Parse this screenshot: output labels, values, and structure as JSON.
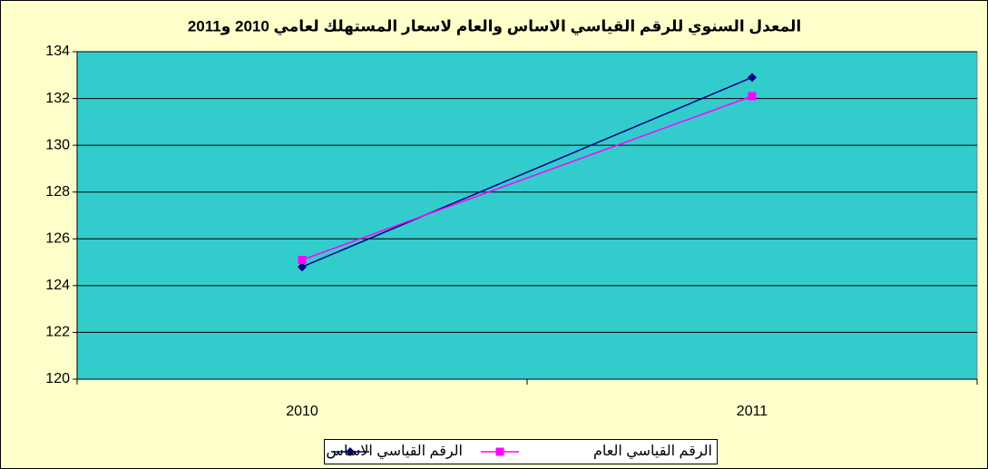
{
  "chart_data": {
    "type": "line",
    "title": "المعدل السنوي للرقم القياسي الاساس والعام لاسعار المستهلك لعامي 2010 و2011",
    "categories": [
      "2010",
      "2011"
    ],
    "series": [
      {
        "name": "الرقم القياسي الاساس",
        "color": "#000080",
        "marker": "diamond",
        "values": [
          124.8,
          132.9
        ]
      },
      {
        "name": "الرقم القياسي العام",
        "color": "#ff00ff",
        "marker": "square",
        "values": [
          125.1,
          132.1
        ]
      }
    ],
    "ylim": [
      120,
      134
    ],
    "yticks": [
      120,
      122,
      124,
      126,
      128,
      130,
      132,
      134
    ],
    "grid": true,
    "legend": "bottom"
  }
}
